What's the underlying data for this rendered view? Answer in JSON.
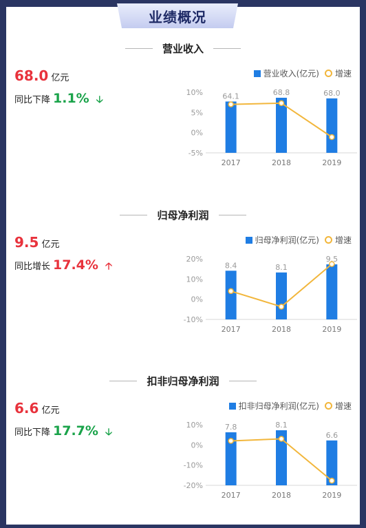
{
  "page_title": "业绩概况",
  "chart_data": [
    {
      "type": "bar",
      "title": "营业收入",
      "value": "68.0",
      "unit": "亿元",
      "yoy_label": "同比下降",
      "yoy_pct": "1.1%",
      "yoy_dir": "down",
      "legend_bar": "营业收入(亿元)",
      "legend_line": "增速",
      "categories": [
        "2017",
        "2018",
        "2019"
      ],
      "series": [
        {
          "name": "营业收入(亿元)",
          "type": "bar",
          "values": [
            64.1,
            68.8,
            68.0
          ],
          "labels": [
            "64.1",
            "68.8",
            "68.0"
          ]
        },
        {
          "name": "增速",
          "type": "line",
          "values": [
            7.0,
            7.3,
            -1.1
          ]
        }
      ],
      "y_ticks": [
        "10%",
        "5%",
        "0%",
        "-5%"
      ],
      "ylim": [
        -5,
        10
      ],
      "colors": {
        "bar": "#1f7de3",
        "line": "#f2b63b"
      }
    },
    {
      "type": "bar",
      "title": "归母净利润",
      "value": "9.5",
      "unit": "亿元",
      "yoy_label": "同比增长",
      "yoy_pct": "17.4%",
      "yoy_dir": "up",
      "legend_bar": "归母净利润(亿元)",
      "legend_line": "增速",
      "categories": [
        "2017",
        "2018",
        "2019"
      ],
      "series": [
        {
          "name": "归母净利润(亿元)",
          "type": "bar",
          "values": [
            8.4,
            8.1,
            9.5
          ],
          "labels": [
            "8.4",
            "8.1",
            "9.5"
          ]
        },
        {
          "name": "增速",
          "type": "line",
          "values": [
            4.0,
            -3.7,
            17.4
          ]
        }
      ],
      "y_ticks": [
        "20%",
        "10%",
        "0%",
        "-10%"
      ],
      "ylim": [
        -10,
        20
      ],
      "colors": {
        "bar": "#1f7de3",
        "line": "#f2b63b"
      }
    },
    {
      "type": "bar",
      "title": "扣非归母净利润",
      "value": "6.6",
      "unit": "亿元",
      "yoy_label": "同比下降",
      "yoy_pct": "17.7%",
      "yoy_dir": "down",
      "legend_bar": "扣非归母净利润(亿元)",
      "legend_line": "增速",
      "categories": [
        "2017",
        "2018",
        "2019"
      ],
      "series": [
        {
          "name": "扣非归母净利润(亿元)",
          "type": "bar",
          "values": [
            7.8,
            8.1,
            6.6
          ],
          "labels": [
            "7.8",
            "8.1",
            "6.6"
          ]
        },
        {
          "name": "增速",
          "type": "line",
          "values": [
            2.0,
            3.0,
            -17.7
          ]
        }
      ],
      "y_ticks": [
        "10%",
        "0%",
        "-10%",
        "-20%"
      ],
      "ylim": [
        -20,
        10
      ],
      "colors": {
        "bar": "#1f7de3",
        "line": "#f2b63b"
      }
    }
  ]
}
